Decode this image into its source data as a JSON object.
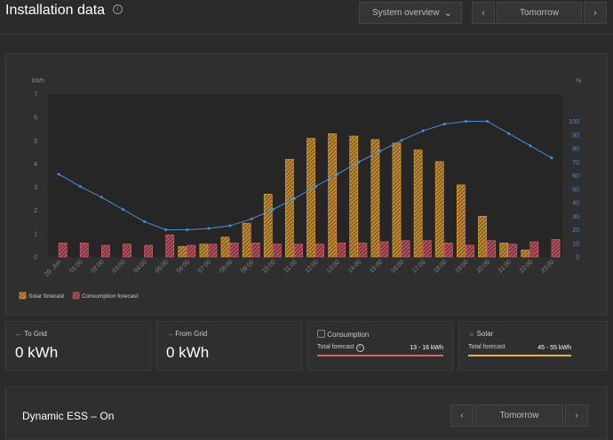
{
  "header": {
    "title": "Installation data",
    "view": "System overview",
    "day": "Tomorrow"
  },
  "chart_data": {
    "type": "bar",
    "categories": [
      "29. Jun",
      "01:00",
      "02:00",
      "03:00",
      "04:00",
      "05:00",
      "06:00",
      "07:00",
      "08:00",
      "09:00",
      "10:00",
      "11:00",
      "12:00",
      "13:00",
      "14:00",
      "15:00",
      "16:00",
      "17:00",
      "18:00",
      "19:00",
      "20:00",
      "21:00",
      "22:00",
      "23:00"
    ],
    "y_label": "kWh",
    "y2_label": "%",
    "ylim": [
      0,
      7
    ],
    "yticks": [
      0,
      1,
      2,
      3,
      4,
      5,
      6,
      7
    ],
    "y2lim": [
      0,
      120
    ],
    "y2ticks": [
      0,
      10,
      20,
      30,
      40,
      50,
      60,
      70,
      80,
      90,
      100
    ],
    "series": [
      {
        "name": "Solar forecast",
        "color": "#e3a13c",
        "values": [
          0,
          0,
          0,
          0,
          0,
          0,
          0.45,
          0.55,
          0.85,
          1.45,
          2.7,
          4.2,
          5.1,
          5.3,
          5.2,
          5.05,
          4.9,
          4.6,
          4.1,
          3.1,
          1.75,
          0.6,
          0.3,
          0
        ]
      },
      {
        "name": "Consumption forecast",
        "color": "#e0606d",
        "values": [
          0.6,
          0.6,
          0.5,
          0.55,
          0.5,
          0.95,
          0.5,
          0.55,
          0.6,
          0.6,
          0.55,
          0.55,
          0.55,
          0.6,
          0.6,
          0.65,
          0.7,
          0.7,
          0.6,
          0.5,
          0.7,
          0.55,
          0.65,
          0.75
        ]
      },
      {
        "type": "line",
        "axis": "y2",
        "color": "#4a8fd6",
        "values": [
          61,
          52,
          44,
          35,
          26,
          20,
          20,
          21,
          23,
          28,
          35,
          43,
          52,
          61,
          70,
          78,
          86,
          93,
          98,
          100,
          100,
          91,
          82,
          73
        ]
      }
    ],
    "legend": "bottom-left"
  },
  "cards": [
    {
      "title": "To Grid",
      "value": "0 kWh"
    },
    {
      "title": "From Grid",
      "value": "0 kWh"
    },
    {
      "title": "Consumption",
      "label": "Total forecast",
      "range": "13 - 16 kWh"
    },
    {
      "title": "Solar",
      "label": "Total forecast",
      "range": "45 - 55 kWh"
    }
  ],
  "footer": {
    "title": "Dynamic ESS – On",
    "day": "Tomorrow"
  }
}
